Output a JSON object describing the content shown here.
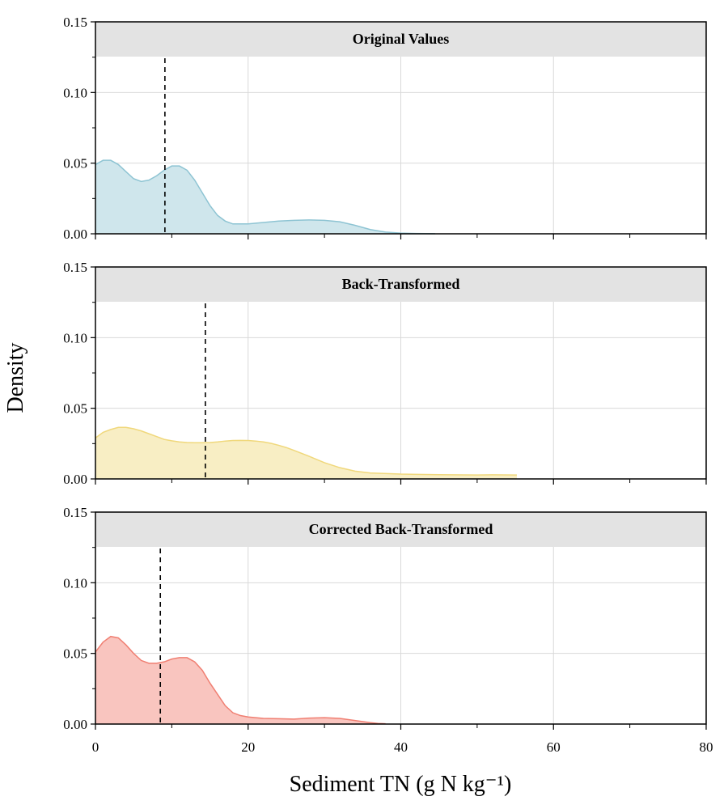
{
  "chart_data": {
    "type": "area",
    "xlabel": "Sediment TN (g N kg⁻¹)",
    "ylabel": "Density",
    "xlim": [
      0,
      80
    ],
    "ylim": [
      0,
      0.15
    ],
    "x_ticks": [
      0,
      20,
      40,
      60,
      80
    ],
    "x_tick_labels": [
      "0",
      "20",
      "40",
      "60",
      "80"
    ],
    "y_ticks": [
      0,
      0.05,
      0.1,
      0.15
    ],
    "y_tick_labels": [
      "0.00",
      "0.05",
      "0.10",
      "0.15"
    ],
    "grid": true,
    "panels": [
      {
        "title": "Original Values",
        "fill": "#cfe6ec",
        "stroke": "#8ec4d3",
        "dashed_line_x": 9.1,
        "x": [
          0,
          1,
          2,
          3,
          4,
          5,
          6,
          7,
          8,
          9,
          10,
          11,
          12,
          13,
          14,
          15,
          16,
          17,
          18,
          19,
          20,
          22,
          24,
          26,
          28,
          30,
          32,
          34,
          36,
          38,
          40,
          42,
          44.5
        ],
        "y": [
          0.049,
          0.052,
          0.052,
          0.049,
          0.044,
          0.039,
          0.037,
          0.038,
          0.041,
          0.045,
          0.048,
          0.048,
          0.045,
          0.038,
          0.029,
          0.02,
          0.013,
          0.009,
          0.007,
          0.007,
          0.007,
          0.008,
          0.009,
          0.0095,
          0.0098,
          0.0095,
          0.0085,
          0.006,
          0.003,
          0.0012,
          0.0005,
          0.0002,
          0.0001
        ]
      },
      {
        "title": "Back-Transformed",
        "fill": "#f8eec4",
        "stroke": "#f0d87c",
        "dashed_line_x": 14.4,
        "x": [
          0,
          1,
          2,
          3,
          4,
          5,
          6,
          7,
          8,
          9,
          10,
          11,
          12,
          13,
          14,
          15,
          16,
          17,
          18,
          19,
          20,
          21,
          22,
          23,
          24,
          25,
          26,
          28,
          30,
          32,
          34,
          36,
          40,
          45,
          50,
          52,
          55.2
        ],
        "y": [
          0.029,
          0.033,
          0.035,
          0.0365,
          0.0365,
          0.0355,
          0.034,
          0.032,
          0.03,
          0.028,
          0.027,
          0.0262,
          0.0258,
          0.0256,
          0.0256,
          0.0258,
          0.0262,
          0.0268,
          0.0272,
          0.0273,
          0.0272,
          0.0268,
          0.0262,
          0.0252,
          0.0238,
          0.0222,
          0.0202,
          0.016,
          0.0115,
          0.008,
          0.0055,
          0.0042,
          0.0034,
          0.003,
          0.0028,
          0.0029,
          0.0028
        ]
      },
      {
        "title": "Corrected Back-Transformed",
        "fill": "#f9c5bf",
        "stroke": "#f07f72",
        "dashed_line_x": 8.5,
        "x": [
          0,
          1,
          2,
          3,
          4,
          5,
          6,
          7,
          8,
          9,
          10,
          11,
          12,
          13,
          14,
          15,
          16,
          17,
          18,
          19,
          20,
          22,
          24,
          26,
          28,
          30,
          32,
          34,
          36,
          37,
          38
        ],
        "y": [
          0.051,
          0.058,
          0.062,
          0.061,
          0.056,
          0.05,
          0.045,
          0.043,
          0.043,
          0.044,
          0.046,
          0.047,
          0.047,
          0.044,
          0.038,
          0.029,
          0.021,
          0.013,
          0.008,
          0.006,
          0.005,
          0.004,
          0.0038,
          0.0035,
          0.0042,
          0.0045,
          0.004,
          0.0025,
          0.001,
          0.0004,
          0.0002
        ]
      }
    ]
  }
}
